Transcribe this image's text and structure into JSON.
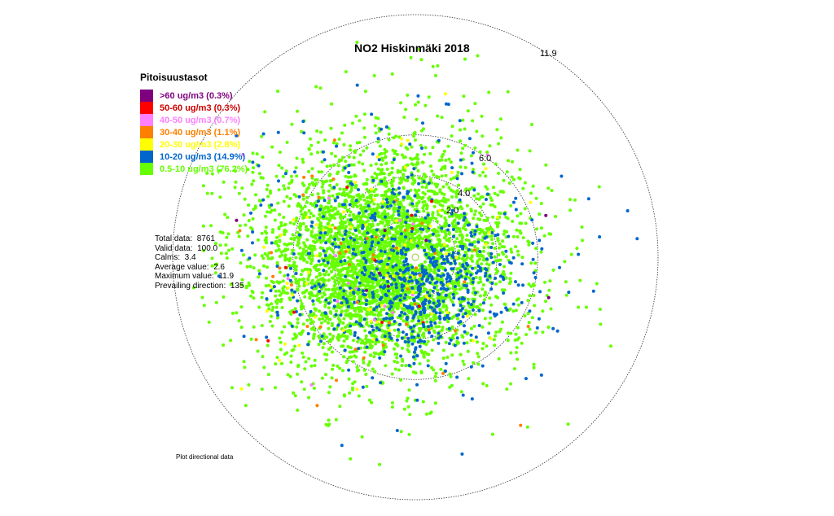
{
  "chart_data": {
    "type": "scatter",
    "title": "NO2 Hiskinmäki 2018",
    "projection": "polar",
    "radial_axis": {
      "max": 11.9,
      "ring_labels": [
        "11.9",
        "6.0",
        "4.0",
        "2.0"
      ]
    },
    "legend": {
      "title": "Pitoisuustasot",
      "placement": "top-left",
      "entries": [
        {
          "label": ">60 ug/m3 (0.3%)",
          "color": "#7f007f",
          "text_color": "#7f007f",
          "share": 0.3
        },
        {
          "label": "50-60 ug/m3 (0.3%)",
          "color": "#ff0000",
          "text_color": "#cc0000",
          "share": 0.3
        },
        {
          "label": "40-50 ug/m3 (0.7%)",
          "color": "#ff80ff",
          "text_color": "#ff80ff",
          "share": 0.7
        },
        {
          "label": "30-40 ug/m3 (1.1%)",
          "color": "#ff7f00",
          "text_color": "#ff7f00",
          "share": 1.1
        },
        {
          "label": "20-30 ug/m3 (2.8%)",
          "color": "#ffff00",
          "text_color": "#ffff00",
          "share": 2.8
        },
        {
          "label": "10-20 ug/m3 (14.9%)",
          "color": "#0066cc",
          "text_color": "#0066cc",
          "share": 14.9
        },
        {
          "label": "0.5-10 ug/m3 (76.2%)",
          "color": "#66ff00",
          "text_color": "#66ff00",
          "share": 76.2
        }
      ]
    },
    "stats": [
      {
        "label": "Total data:",
        "value": "8761"
      },
      {
        "label": "Valid data:",
        "value": "100.0"
      },
      {
        "label": "Calms:",
        "value": "3.4"
      },
      {
        "label": "Average value:",
        "value": "2.6"
      },
      {
        "label": "Maximum value:",
        "value": "11.9"
      },
      {
        "label": "Prevailing direction:",
        "value": "135"
      }
    ],
    "point_cloud": {
      "count": 5200,
      "prevailing_direction_deg": 135,
      "mean_speed": 2.6,
      "max_speed": 11.9
    },
    "footer": "Plot directional data"
  }
}
